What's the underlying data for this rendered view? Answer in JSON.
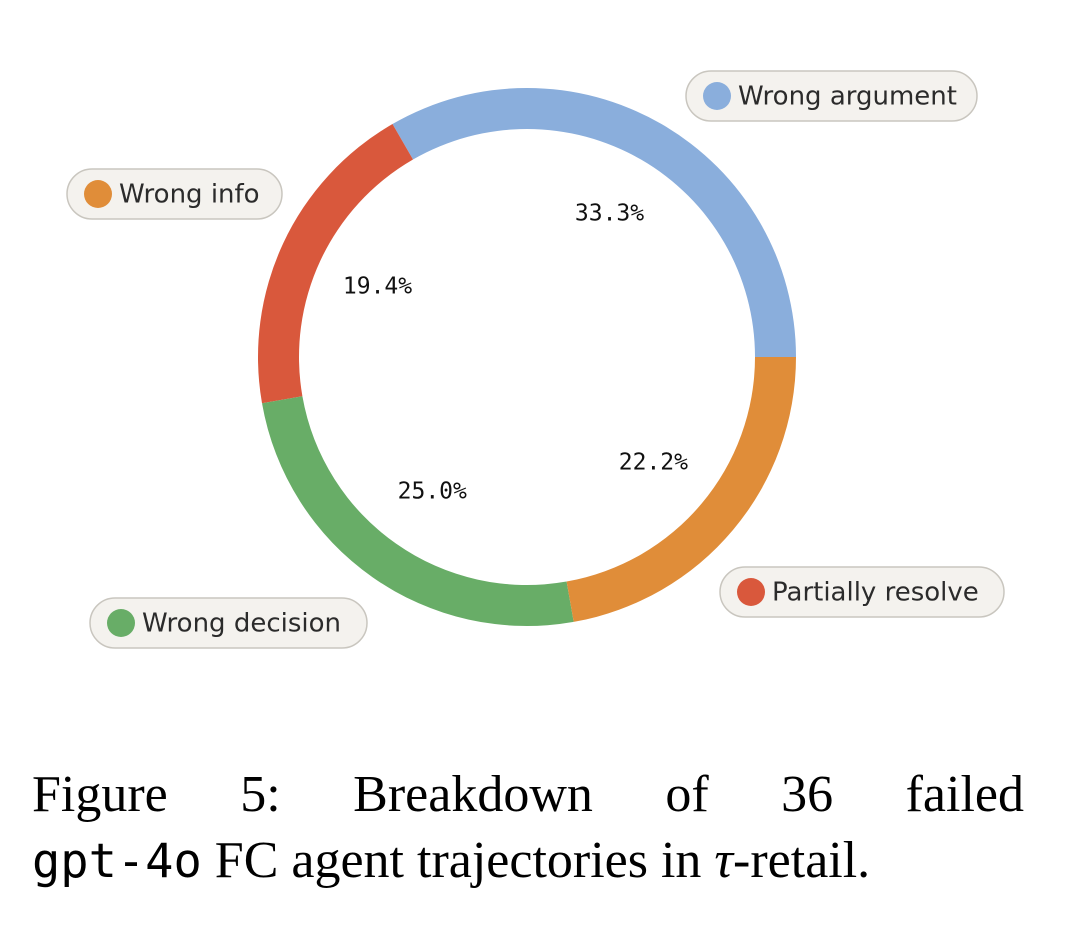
{
  "chart_data": {
    "type": "pie",
    "variant": "donut",
    "slices": [
      {
        "label": "Wrong argument",
        "value": 33.3,
        "display": "33.3%",
        "color": "#8AAEDC"
      },
      {
        "label": "Partially resolve",
        "value": 19.4,
        "display": "19.4%",
        "color": "#D9583C"
      },
      {
        "label": "Wrong decision",
        "value": 25.0,
        "display": "25.0%",
        "color": "#68AD67"
      },
      {
        "label": "Wrong info",
        "value": 22.2,
        "display": "22.2%",
        "color": "#E08D39"
      }
    ],
    "legend_style": "callout pills"
  },
  "caption": {
    "line1_words": [
      "Figure",
      "5:",
      "Breakdown",
      "of",
      "36",
      "failed"
    ],
    "model": "gpt-4o",
    "line2_rest": " FC agent trajectories in ",
    "greek": "τ",
    "suffix": "-retail."
  }
}
